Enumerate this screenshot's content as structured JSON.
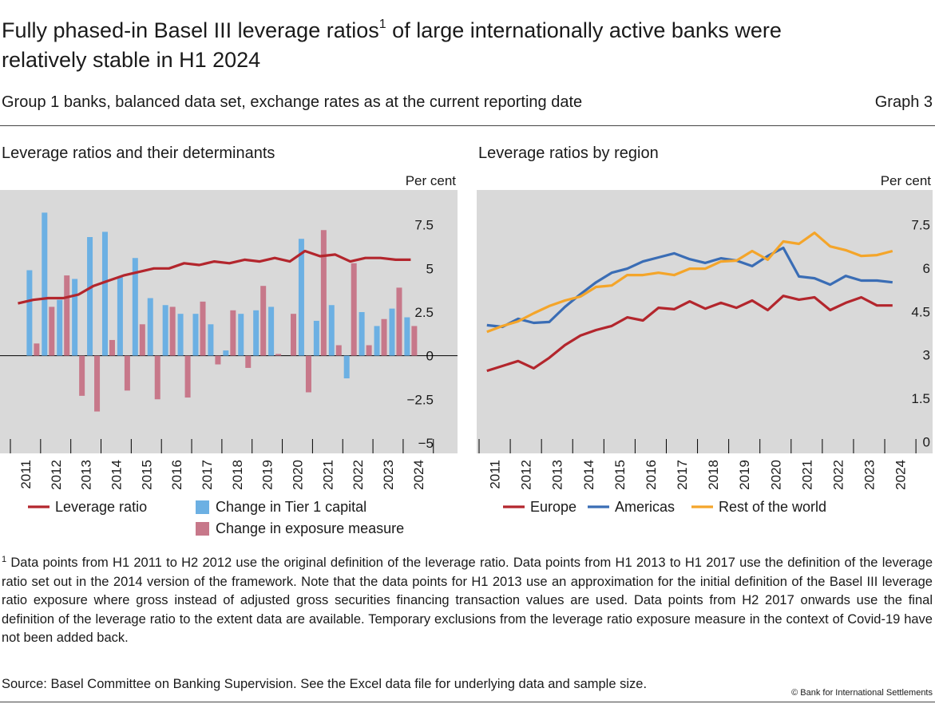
{
  "title": "Fully phased-in Basel III leverage ratios",
  "title_note": "1",
  "title_cont": "of large internationally active banks were",
  "title_line2": "relatively stable in H1 2024",
  "subtitle": "Group 1 banks, balanced data set, exchange rates as at the current reporting date",
  "graph_label": "Graph 3",
  "footnote_marker": "1",
  "footnote": "Data points from H1 2011 to H2 2012 use the original definition of the leverage ratio. Data points from H1 2013 to H1 2017 use the definition of the leverage ratio set out in the 2014 version of the framework. Note that the data points for H1 2013 use an approximation for the initial definition of the Basel III leverage ratio exposure where gross instead of adjusted gross securities financing transaction values are used. Data points from H2 2017 onwards use the final definition of the leverage ratio to the extent data are available. Temporary exclusions from the leverage ratio exposure measure in the context of Covid-19 have not been added back.",
  "source": "Source: Basel Committee on Banking Supervision. See the Excel data file for underlying data and sample size.",
  "copyright": "© Bank for International Settlements",
  "chart_data": [
    {
      "type": "bar",
      "title": "Leverage ratios and their determinants",
      "y_unit": "Per cent",
      "categories": [
        "2011",
        null,
        "2012",
        null,
        "2013",
        null,
        "2014",
        null,
        "2015",
        null,
        "2016",
        null,
        "2017",
        null,
        "2018",
        null,
        "2019",
        null,
        "2020",
        null,
        "2021",
        null,
        "2022",
        null,
        "2023",
        null,
        "2024"
      ],
      "ylim": [
        -5.6,
        9.5
      ],
      "yticks": [
        {
          "value": -5,
          "label": "−5"
        },
        {
          "value": -2.5,
          "label": "−2.5"
        },
        0,
        2.5,
        5,
        7.5
      ],
      "grid": false,
      "zero_line": true,
      "series": [
        {
          "name": "Change in Tier 1 capital",
          "type": "bar",
          "color": "#6cb0e3",
          "values": [
            null,
            4.9,
            8.2,
            3.2,
            4.4,
            6.8,
            7.1,
            4.5,
            5.6,
            3.3,
            2.9,
            2.4,
            2.4,
            1.8,
            0.3,
            2.4,
            2.6,
            2.8,
            0,
            6.7,
            2.0,
            2.9,
            -1.3,
            2.5,
            1.7,
            2.7,
            2.2
          ]
        },
        {
          "name": "Change in exposure measure",
          "type": "bar",
          "color": "#c7788a",
          "values": [
            null,
            0.7,
            2.8,
            4.6,
            -2.3,
            -3.2,
            0.9,
            -2.0,
            1.8,
            -2.5,
            2.8,
            -2.4,
            3.1,
            -0.5,
            2.6,
            -0.7,
            4.0,
            0.1,
            2.4,
            -2.1,
            7.2,
            0.6,
            5.3,
            0.6,
            2.1,
            3.9,
            1.7
          ]
        },
        {
          "name": "Leverage ratio",
          "type": "line",
          "color": "#b3262d",
          "values": [
            3.0,
            3.2,
            3.3,
            3.3,
            3.5,
            4.0,
            4.3,
            4.6,
            4.8,
            5.0,
            5.0,
            5.3,
            5.2,
            5.4,
            5.3,
            5.5,
            5.4,
            5.6,
            5.4,
            6.0,
            5.7,
            5.8,
            5.4,
            5.6,
            5.6,
            5.5,
            5.5
          ]
        }
      ]
    },
    {
      "type": "line",
      "title": "Leverage ratios by region",
      "y_unit": "Per cent",
      "categories": [
        "2011",
        null,
        "2012",
        null,
        "2013",
        null,
        "2014",
        null,
        "2015",
        null,
        "2016",
        null,
        "2017",
        null,
        "2018",
        null,
        "2019",
        null,
        "2020",
        null,
        "2021",
        null,
        "2022",
        null,
        "2023",
        null,
        "2024"
      ],
      "ylim": [
        -0.4,
        8.7
      ],
      "yticks": [
        0,
        1.5,
        3,
        4.5,
        6,
        7.5
      ],
      "grid": false,
      "zero_line": false,
      "series": [
        {
          "name": "Europe",
          "type": "line",
          "color": "#b3262d",
          "values": [
            2.45,
            2.62,
            2.79,
            2.54,
            2.9,
            3.34,
            3.67,
            3.86,
            4.0,
            4.3,
            4.19,
            4.63,
            4.58,
            4.85,
            4.6,
            4.8,
            4.63,
            4.88,
            4.55,
            5.04,
            4.91,
            4.99,
            4.55,
            4.8,
            4.99,
            4.71,
            4.71
          ]
        },
        {
          "name": "Americas",
          "type": "line",
          "color": "#3a6db5",
          "values": [
            4.03,
            3.97,
            4.25,
            4.11,
            4.14,
            4.66,
            5.1,
            5.51,
            5.84,
            5.98,
            6.23,
            6.37,
            6.51,
            6.31,
            6.18,
            6.34,
            6.26,
            6.07,
            6.42,
            6.7,
            5.71,
            5.65,
            5.43,
            5.73,
            5.57,
            5.57,
            5.51
          ]
        },
        {
          "name": "Rest of the world",
          "type": "line",
          "color": "#f4a52a",
          "values": [
            3.8,
            4.0,
            4.16,
            4.44,
            4.69,
            4.88,
            5.02,
            5.35,
            5.4,
            5.76,
            5.76,
            5.84,
            5.76,
            5.98,
            5.98,
            6.23,
            6.26,
            6.59,
            6.29,
            6.92,
            6.84,
            7.22,
            6.75,
            6.62,
            6.42,
            6.45,
            6.59
          ]
        }
      ]
    }
  ]
}
